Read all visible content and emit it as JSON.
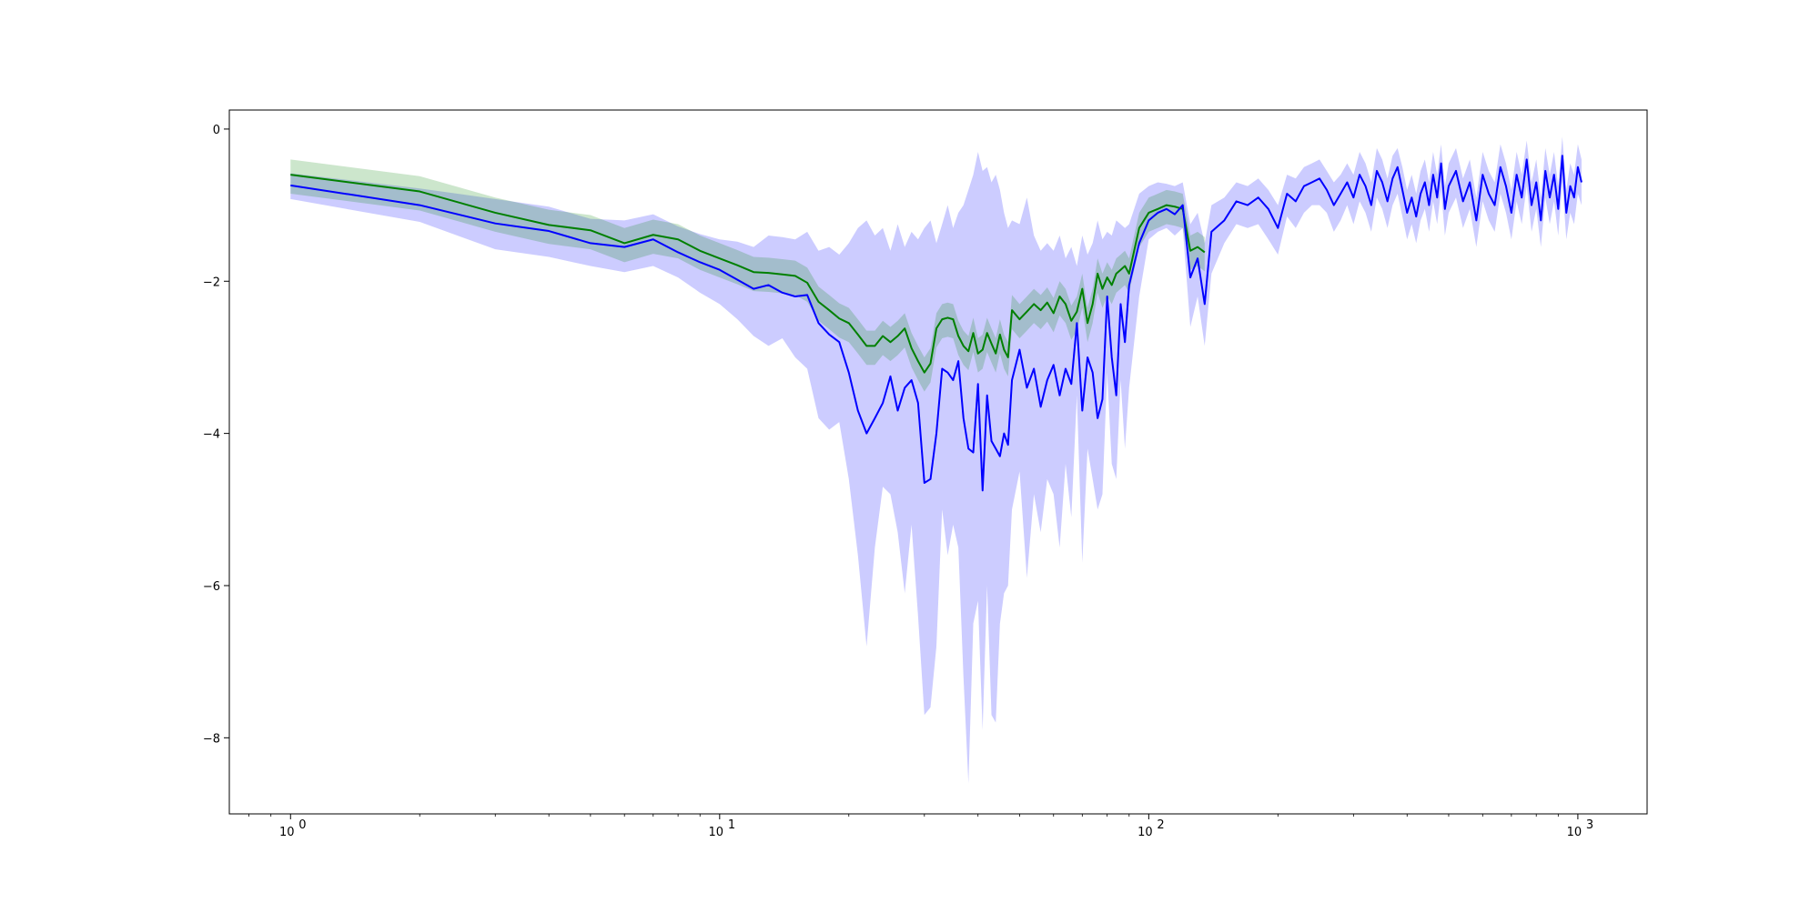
{
  "chart_data": {
    "type": "line",
    "title": "",
    "xlabel": "",
    "ylabel": "",
    "x_scale": "log",
    "xlim": [
      0.72,
      1450
    ],
    "ylim": [
      -9.0,
      0.25
    ],
    "x_ticks": [
      {
        "value": 1,
        "base": "10",
        "exp": "0"
      },
      {
        "value": 10,
        "base": "10",
        "exp": "1"
      },
      {
        "value": 100,
        "base": "10",
        "exp": "2"
      },
      {
        "value": 1000,
        "base": "10",
        "exp": "3"
      }
    ],
    "y_ticks": [
      {
        "value": 0,
        "label": "0"
      },
      {
        "value": -2,
        "label": "−2"
      },
      {
        "value": -4,
        "label": "−4"
      },
      {
        "value": -6,
        "label": "−6"
      },
      {
        "value": -8,
        "label": "−8"
      }
    ],
    "grid": false,
    "legend": "none",
    "colors": {
      "green": "#008000",
      "blue": "#0000ff",
      "green_band": "#008000",
      "blue_band": "#0000ff"
    },
    "series": [
      {
        "color": "green",
        "x": [
          1,
          2,
          3,
          4,
          5,
          6,
          7,
          8,
          9,
          10,
          11,
          12,
          13,
          14,
          15,
          16,
          17,
          18,
          19,
          20,
          21,
          22,
          23,
          24,
          25,
          26,
          27,
          28,
          29,
          30,
          31,
          32,
          33,
          34,
          35,
          36,
          37,
          38,
          39,
          40,
          41,
          42,
          43,
          44,
          45,
          46,
          47,
          48,
          50,
          52,
          54,
          56,
          58,
          60,
          62,
          64,
          66,
          68,
          70,
          72,
          74,
          76,
          78,
          80,
          82,
          84,
          86,
          88,
          90,
          95,
          100,
          105,
          110,
          115,
          120,
          125,
          130,
          135
        ],
        "y": [
          -0.6,
          -0.82,
          -1.1,
          -1.26,
          -1.33,
          -1.5,
          -1.39,
          -1.45,
          -1.6,
          -1.7,
          -1.79,
          -1.88,
          -1.89,
          -1.91,
          -1.93,
          -2.02,
          -2.27,
          -2.38,
          -2.49,
          -2.55,
          -2.7,
          -2.85,
          -2.85,
          -2.72,
          -2.8,
          -2.72,
          -2.62,
          -2.88,
          -3.05,
          -3.2,
          -3.08,
          -2.62,
          -2.5,
          -2.48,
          -2.5,
          -2.72,
          -2.85,
          -2.92,
          -2.68,
          -2.95,
          -2.9,
          -2.68,
          -2.82,
          -2.95,
          -2.7,
          -2.9,
          -3.0,
          -2.38,
          -2.5,
          -2.4,
          -2.3,
          -2.38,
          -2.28,
          -2.42,
          -2.2,
          -2.3,
          -2.52,
          -2.4,
          -2.1,
          -2.55,
          -2.3,
          -1.9,
          -2.1,
          -1.95,
          -2.05,
          -1.9,
          -1.85,
          -1.8,
          -1.9,
          -1.3,
          -1.1,
          -1.05,
          -1.0,
          -1.02,
          -1.05,
          -1.6,
          -1.55,
          -1.62
        ]
      },
      {
        "color": "blue",
        "x": [
          1,
          2,
          3,
          4,
          5,
          6,
          7,
          8,
          9,
          10,
          11,
          12,
          13,
          14,
          15,
          16,
          17,
          18,
          19,
          20,
          21,
          22,
          23,
          24,
          25,
          26,
          27,
          28,
          29,
          30,
          31,
          32,
          33,
          34,
          35,
          36,
          37,
          38,
          39,
          40,
          41,
          42,
          43,
          44,
          45,
          46,
          47,
          48,
          50,
          52,
          54,
          56,
          58,
          60,
          62,
          64,
          66,
          68,
          70,
          72,
          74,
          76,
          78,
          80,
          82,
          84,
          86,
          88,
          90,
          95,
          100,
          105,
          110,
          115,
          120,
          125,
          130,
          135,
          140,
          150,
          160,
          170,
          180,
          190,
          200,
          210,
          220,
          230,
          240,
          250,
          260,
          270,
          280,
          290,
          300,
          310,
          320,
          330,
          340,
          350,
          360,
          370,
          380,
          390,
          400,
          410,
          420,
          430,
          440,
          450,
          460,
          470,
          480,
          490,
          500,
          520,
          540,
          560,
          580,
          600,
          620,
          640,
          660,
          680,
          700,
          720,
          740,
          760,
          780,
          800,
          820,
          840,
          860,
          880,
          900,
          920,
          940,
          960,
          980,
          1000,
          1020
        ],
        "y": [
          -0.74,
          -1.0,
          -1.24,
          -1.34,
          -1.5,
          -1.55,
          -1.45,
          -1.62,
          -1.75,
          -1.85,
          -1.98,
          -2.1,
          -2.05,
          -2.15,
          -2.2,
          -2.18,
          -2.55,
          -2.7,
          -2.8,
          -3.2,
          -3.7,
          -4.0,
          -3.8,
          -3.6,
          -3.25,
          -3.7,
          -3.4,
          -3.3,
          -3.6,
          -4.65,
          -4.6,
          -4.0,
          -3.15,
          -3.2,
          -3.3,
          -3.05,
          -3.8,
          -4.2,
          -4.25,
          -3.35,
          -4.75,
          -3.5,
          -4.1,
          -4.2,
          -4.3,
          -4.0,
          -4.15,
          -3.3,
          -2.9,
          -3.4,
          -3.15,
          -3.65,
          -3.3,
          -3.1,
          -3.5,
          -3.15,
          -3.35,
          -2.55,
          -3.7,
          -3.0,
          -3.2,
          -3.8,
          -3.55,
          -2.2,
          -3.0,
          -3.5,
          -2.3,
          -2.8,
          -2.05,
          -1.5,
          -1.2,
          -1.1,
          -1.05,
          -1.12,
          -1.0,
          -1.95,
          -1.7,
          -2.3,
          -1.35,
          -1.2,
          -0.95,
          -1.0,
          -0.9,
          -1.05,
          -1.3,
          -0.85,
          -0.95,
          -0.75,
          -0.7,
          -0.65,
          -0.8,
          -1.0,
          -0.85,
          -0.7,
          -0.9,
          -0.6,
          -0.75,
          -1.0,
          -0.55,
          -0.7,
          -0.95,
          -0.65,
          -0.5,
          -0.8,
          -1.1,
          -0.9,
          -1.15,
          -0.85,
          -0.7,
          -1.0,
          -0.6,
          -0.9,
          -0.45,
          -1.05,
          -0.75,
          -0.55,
          -0.95,
          -0.7,
          -1.2,
          -0.6,
          -0.85,
          -1.0,
          -0.5,
          -0.75,
          -1.1,
          -0.6,
          -0.9,
          -0.4,
          -1.0,
          -0.7,
          -1.2,
          -0.55,
          -0.9,
          -0.6,
          -1.05,
          -0.35,
          -1.1,
          -0.75,
          -0.9,
          -0.5,
          -0.7
        ],
        "band_lower": [
          -0.92,
          -1.22,
          -1.58,
          -1.68,
          -1.8,
          -1.88,
          -1.8,
          -1.95,
          -2.15,
          -2.3,
          -2.5,
          -2.72,
          -2.85,
          -2.75,
          -3.0,
          -3.15,
          -3.8,
          -3.95,
          -3.85,
          -4.6,
          -5.6,
          -6.8,
          -5.5,
          -4.7,
          -4.8,
          -5.3,
          -6.1,
          -5.2,
          -6.4,
          -7.7,
          -7.6,
          -6.8,
          -5.0,
          -5.6,
          -5.2,
          -5.5,
          -7.2,
          -8.6,
          -6.5,
          -6.2,
          -7.9,
          -6.0,
          -7.7,
          -7.8,
          -6.5,
          -6.1,
          -6.0,
          -5.0,
          -4.5,
          -5.9,
          -4.8,
          -5.3,
          -4.6,
          -4.8,
          -5.5,
          -4.4,
          -5.1,
          -3.5,
          -5.7,
          -4.2,
          -4.6,
          -5.0,
          -4.8,
          -3.2,
          -4.4,
          -4.6,
          -3.3,
          -4.2,
          -3.4,
          -2.2,
          -1.45,
          -1.35,
          -1.3,
          -1.4,
          -1.3,
          -2.6,
          -2.2,
          -2.85,
          -1.9,
          -1.5,
          -1.25,
          -1.3,
          -1.25,
          -1.45,
          -1.65,
          -1.15,
          -1.3,
          -1.1,
          -1.0,
          -1.0,
          -1.1,
          -1.35,
          -1.2,
          -1.0,
          -1.25,
          -0.95,
          -1.1,
          -1.35,
          -0.9,
          -1.05,
          -1.3,
          -1.0,
          -0.85,
          -1.15,
          -1.45,
          -1.25,
          -1.5,
          -1.2,
          -1.05,
          -1.35,
          -0.95,
          -1.25,
          -0.8,
          -1.4,
          -1.1,
          -0.9,
          -1.3,
          -1.05,
          -1.55,
          -0.95,
          -1.2,
          -1.35,
          -0.85,
          -1.1,
          -1.45,
          -0.95,
          -1.25,
          -0.75,
          -1.35,
          -1.05,
          -1.55,
          -0.9,
          -1.25,
          -0.95,
          -1.4,
          -0.7,
          -1.45,
          -1.1,
          -1.25,
          -0.85,
          -1.0
        ],
        "band_upper": [
          -0.58,
          -0.78,
          -0.92,
          -1.02,
          -1.18,
          -1.2,
          -1.12,
          -1.28,
          -1.38,
          -1.45,
          -1.48,
          -1.55,
          -1.4,
          -1.42,
          -1.45,
          -1.35,
          -1.6,
          -1.55,
          -1.65,
          -1.5,
          -1.3,
          -1.2,
          -1.4,
          -1.3,
          -1.6,
          -1.25,
          -1.55,
          -1.35,
          -1.45,
          -1.3,
          -1.2,
          -1.5,
          -1.25,
          -1.0,
          -1.3,
          -1.1,
          -1.0,
          -0.8,
          -0.6,
          -0.3,
          -0.55,
          -0.5,
          -0.7,
          -0.6,
          -0.8,
          -1.1,
          -1.3,
          -1.2,
          -1.25,
          -0.9,
          -1.4,
          -1.6,
          -1.5,
          -1.6,
          -1.4,
          -1.7,
          -1.55,
          -1.8,
          -1.4,
          -1.65,
          -1.5,
          -1.2,
          -1.45,
          -1.35,
          -1.4,
          -1.2,
          -1.25,
          -1.3,
          -1.25,
          -0.85,
          -0.75,
          -0.7,
          -0.72,
          -0.75,
          -0.7,
          -1.25,
          -1.1,
          -1.5,
          -1.0,
          -0.9,
          -0.7,
          -0.75,
          -0.65,
          -0.8,
          -1.0,
          -0.6,
          -0.65,
          -0.5,
          -0.45,
          -0.4,
          -0.55,
          -0.7,
          -0.6,
          -0.45,
          -0.6,
          -0.3,
          -0.45,
          -0.7,
          -0.25,
          -0.4,
          -0.65,
          -0.35,
          -0.25,
          -0.5,
          -0.8,
          -0.6,
          -0.85,
          -0.55,
          -0.4,
          -0.7,
          -0.3,
          -0.6,
          -0.2,
          -0.75,
          -0.45,
          -0.25,
          -0.65,
          -0.4,
          -0.9,
          -0.3,
          -0.55,
          -0.7,
          -0.2,
          -0.45,
          -0.8,
          -0.3,
          -0.6,
          -0.15,
          -0.7,
          -0.4,
          -0.9,
          -0.25,
          -0.6,
          -0.3,
          -0.75,
          -0.1,
          -0.8,
          -0.45,
          -0.6,
          -0.2,
          -0.4
        ]
      }
    ]
  }
}
